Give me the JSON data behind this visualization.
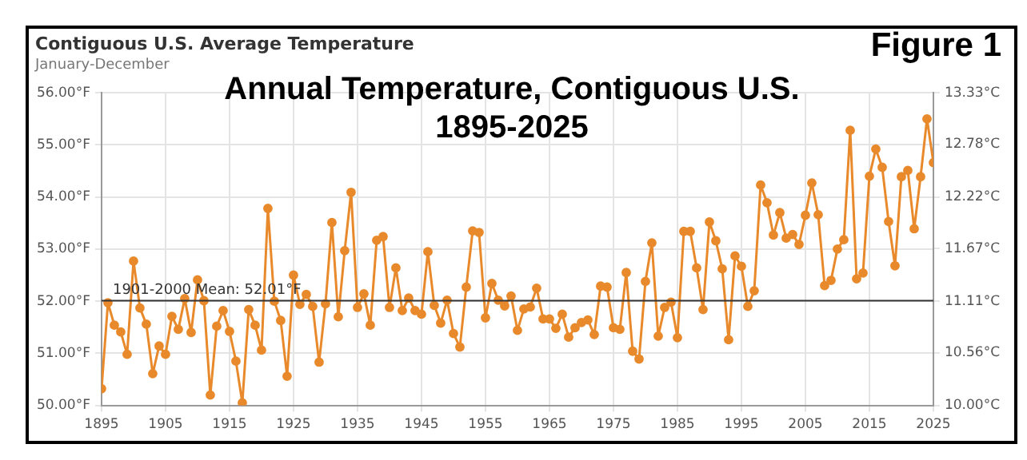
{
  "chart_data": {
    "type": "line",
    "title": "Annual Temperature, Contiguous U.S.\n1895-2025",
    "subtitle": "Contiguous U.S. Average Temperature",
    "annotations": [
      "January-December",
      "Figure 1"
    ],
    "x": [
      1895,
      1896,
      1897,
      1898,
      1899,
      1900,
      1901,
      1902,
      1903,
      1904,
      1905,
      1906,
      1907,
      1908,
      1909,
      1910,
      1911,
      1912,
      1913,
      1914,
      1915,
      1916,
      1917,
      1918,
      1919,
      1920,
      1921,
      1922,
      1923,
      1924,
      1925,
      1926,
      1927,
      1928,
      1929,
      1930,
      1931,
      1932,
      1933,
      1934,
      1935,
      1936,
      1937,
      1938,
      1939,
      1940,
      1941,
      1942,
      1943,
      1944,
      1945,
      1946,
      1947,
      1948,
      1949,
      1950,
      1951,
      1952,
      1953,
      1954,
      1955,
      1956,
      1957,
      1958,
      1959,
      1960,
      1961,
      1962,
      1963,
      1964,
      1965,
      1966,
      1967,
      1968,
      1969,
      1970,
      1971,
      1972,
      1973,
      1974,
      1975,
      1976,
      1977,
      1978,
      1979,
      1980,
      1981,
      1982,
      1983,
      1984,
      1985,
      1986,
      1987,
      1988,
      1989,
      1990,
      1991,
      1992,
      1993,
      1994,
      1995,
      1996,
      1997,
      1998,
      1999,
      2000,
      2001,
      2002,
      2003,
      2004,
      2005,
      2006,
      2007,
      2008,
      2009,
      2010,
      2011,
      2012,
      2013,
      2014,
      2015,
      2016,
      2017,
      2018,
      2019,
      2020,
      2021,
      2022,
      2023,
      2024,
      2025
    ],
    "series": [
      {
        "color": "#e8892b",
        "values": [
          50.32,
          51.97,
          51.54,
          51.41,
          50.98,
          52.77,
          51.87,
          51.56,
          50.61,
          51.14,
          50.98,
          51.71,
          51.46,
          52.05,
          51.4,
          52.41,
          52.01,
          50.2,
          51.52,
          51.82,
          51.42,
          50.85,
          50.05,
          51.84,
          51.54,
          51.06,
          53.78,
          52.0,
          51.63,
          50.56,
          52.5,
          51.94,
          52.13,
          51.9,
          50.83,
          51.95,
          53.51,
          51.7,
          52.97,
          54.09,
          51.88,
          52.14,
          51.54,
          53.17,
          53.24,
          51.88,
          52.64,
          51.82,
          52.06,
          51.82,
          51.75,
          52.95,
          51.92,
          51.58,
          52.02,
          51.38,
          51.12,
          52.27,
          53.35,
          53.32,
          51.68,
          52.34,
          52.02,
          51.91,
          52.1,
          51.44,
          51.85,
          51.89,
          52.25,
          51.66,
          51.66,
          51.48,
          51.75,
          51.31,
          51.49,
          51.59,
          51.64,
          51.36,
          52.29,
          52.27,
          51.49,
          51.46,
          52.55,
          51.04,
          50.89,
          52.38,
          53.12,
          51.33,
          51.88,
          51.98,
          51.3,
          53.34,
          53.34,
          52.64,
          51.84,
          53.52,
          53.16,
          52.62,
          51.26,
          52.87,
          52.67,
          51.9,
          52.2,
          54.23,
          53.89,
          53.27,
          53.7,
          53.21,
          53.28,
          53.09,
          53.65,
          54.27,
          53.66,
          52.3,
          52.4,
          53.0,
          53.18,
          55.28,
          52.43,
          52.54,
          54.4,
          54.92,
          54.57,
          53.53,
          52.68,
          54.39,
          54.51,
          53.39,
          54.39,
          55.5,
          54.66
        ]
      }
    ],
    "xlim": [
      1895,
      2025
    ],
    "xticks": [
      1895,
      1905,
      1915,
      1925,
      1935,
      1945,
      1955,
      1965,
      1975,
      1985,
      1995,
      2005,
      2015,
      2025
    ],
    "ylim": [
      50,
      56
    ],
    "yticks": [
      {
        "value": 50,
        "label": "50.00°F"
      },
      {
        "value": 51,
        "label": "51.00°F"
      },
      {
        "value": 52,
        "label": "52.00°F"
      },
      {
        "value": 53,
        "label": "53.00°F"
      },
      {
        "value": 54,
        "label": "54.00°F"
      },
      {
        "value": 55,
        "label": "55.00°F"
      },
      {
        "value": 56,
        "label": "56.00°F"
      }
    ],
    "y2lim": [
      10,
      13.33
    ],
    "y2ticks": [
      {
        "value": 10,
        "label": "10.00°C"
      },
      {
        "value": 10.56,
        "label": "10.56°C"
      },
      {
        "value": 11.11,
        "label": "11.11°C"
      },
      {
        "value": 11.67,
        "label": "11.67°C"
      },
      {
        "value": 12.22,
        "label": "12.22°C"
      },
      {
        "value": 12.78,
        "label": "12.78°C"
      },
      {
        "value": 13.33,
        "label": "13.33°C"
      }
    ],
    "ref_lines": [
      {
        "axis": "y",
        "value": 52.01,
        "label": "1901-2000 Mean: 52.01°F",
        "color": "#333333"
      }
    ],
    "grid": true,
    "legend": false,
    "marker": "circle",
    "line_style": "solid"
  }
}
